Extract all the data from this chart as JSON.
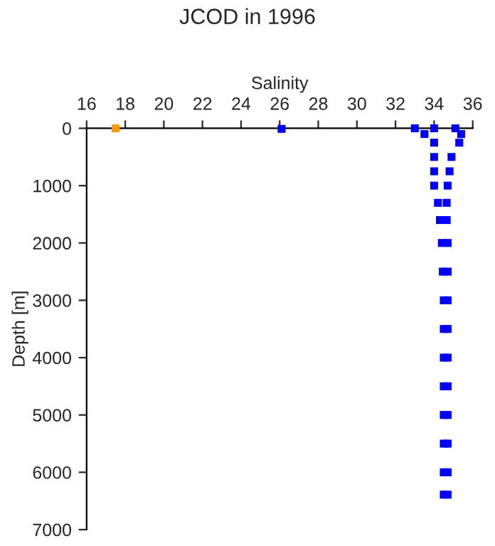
{
  "chart_data": {
    "type": "scatter",
    "title": "JCOD in 1996",
    "xlabel": "Salinity",
    "ylabel": "Depth [m]",
    "xlim": [
      16,
      36
    ],
    "xticks": [
      16,
      18,
      20,
      22,
      24,
      26,
      28,
      30,
      32,
      34,
      36
    ],
    "ylim": [
      7000,
      0
    ],
    "yticks": [
      0,
      1000,
      2000,
      3000,
      4000,
      5000,
      6000,
      7000
    ],
    "grid": false,
    "marker": "square",
    "series": [
      {
        "color": "#0000ff",
        "x": [
          33.0,
          34.0,
          35.1,
          33.5,
          35.4,
          34.0,
          35.3,
          34.0,
          34.9,
          34.0,
          34.8,
          34.0,
          34.7,
          34.2,
          34.65,
          34.3,
          34.65,
          34.4,
          34.7,
          34.45,
          34.7,
          34.5,
          34.7,
          34.5,
          34.7,
          34.5,
          34.7,
          34.5,
          34.7,
          34.5,
          34.7,
          34.5,
          34.7,
          34.5,
          34.7,
          34.5,
          34.7,
          26.1
        ],
        "values": [
          0,
          0,
          0,
          100,
          100,
          250,
          250,
          500,
          500,
          750,
          750,
          1000,
          1000,
          1300,
          1300,
          1600,
          1600,
          2000,
          2000,
          2500,
          2500,
          3000,
          3000,
          3500,
          3500,
          4000,
          4000,
          4500,
          4500,
          5000,
          5000,
          5500,
          5500,
          6000,
          6000,
          6390,
          6390,
          10
        ]
      },
      {
        "color": "#ff9900",
        "x": [
          17.5
        ],
        "values": [
          0
        ]
      }
    ]
  }
}
